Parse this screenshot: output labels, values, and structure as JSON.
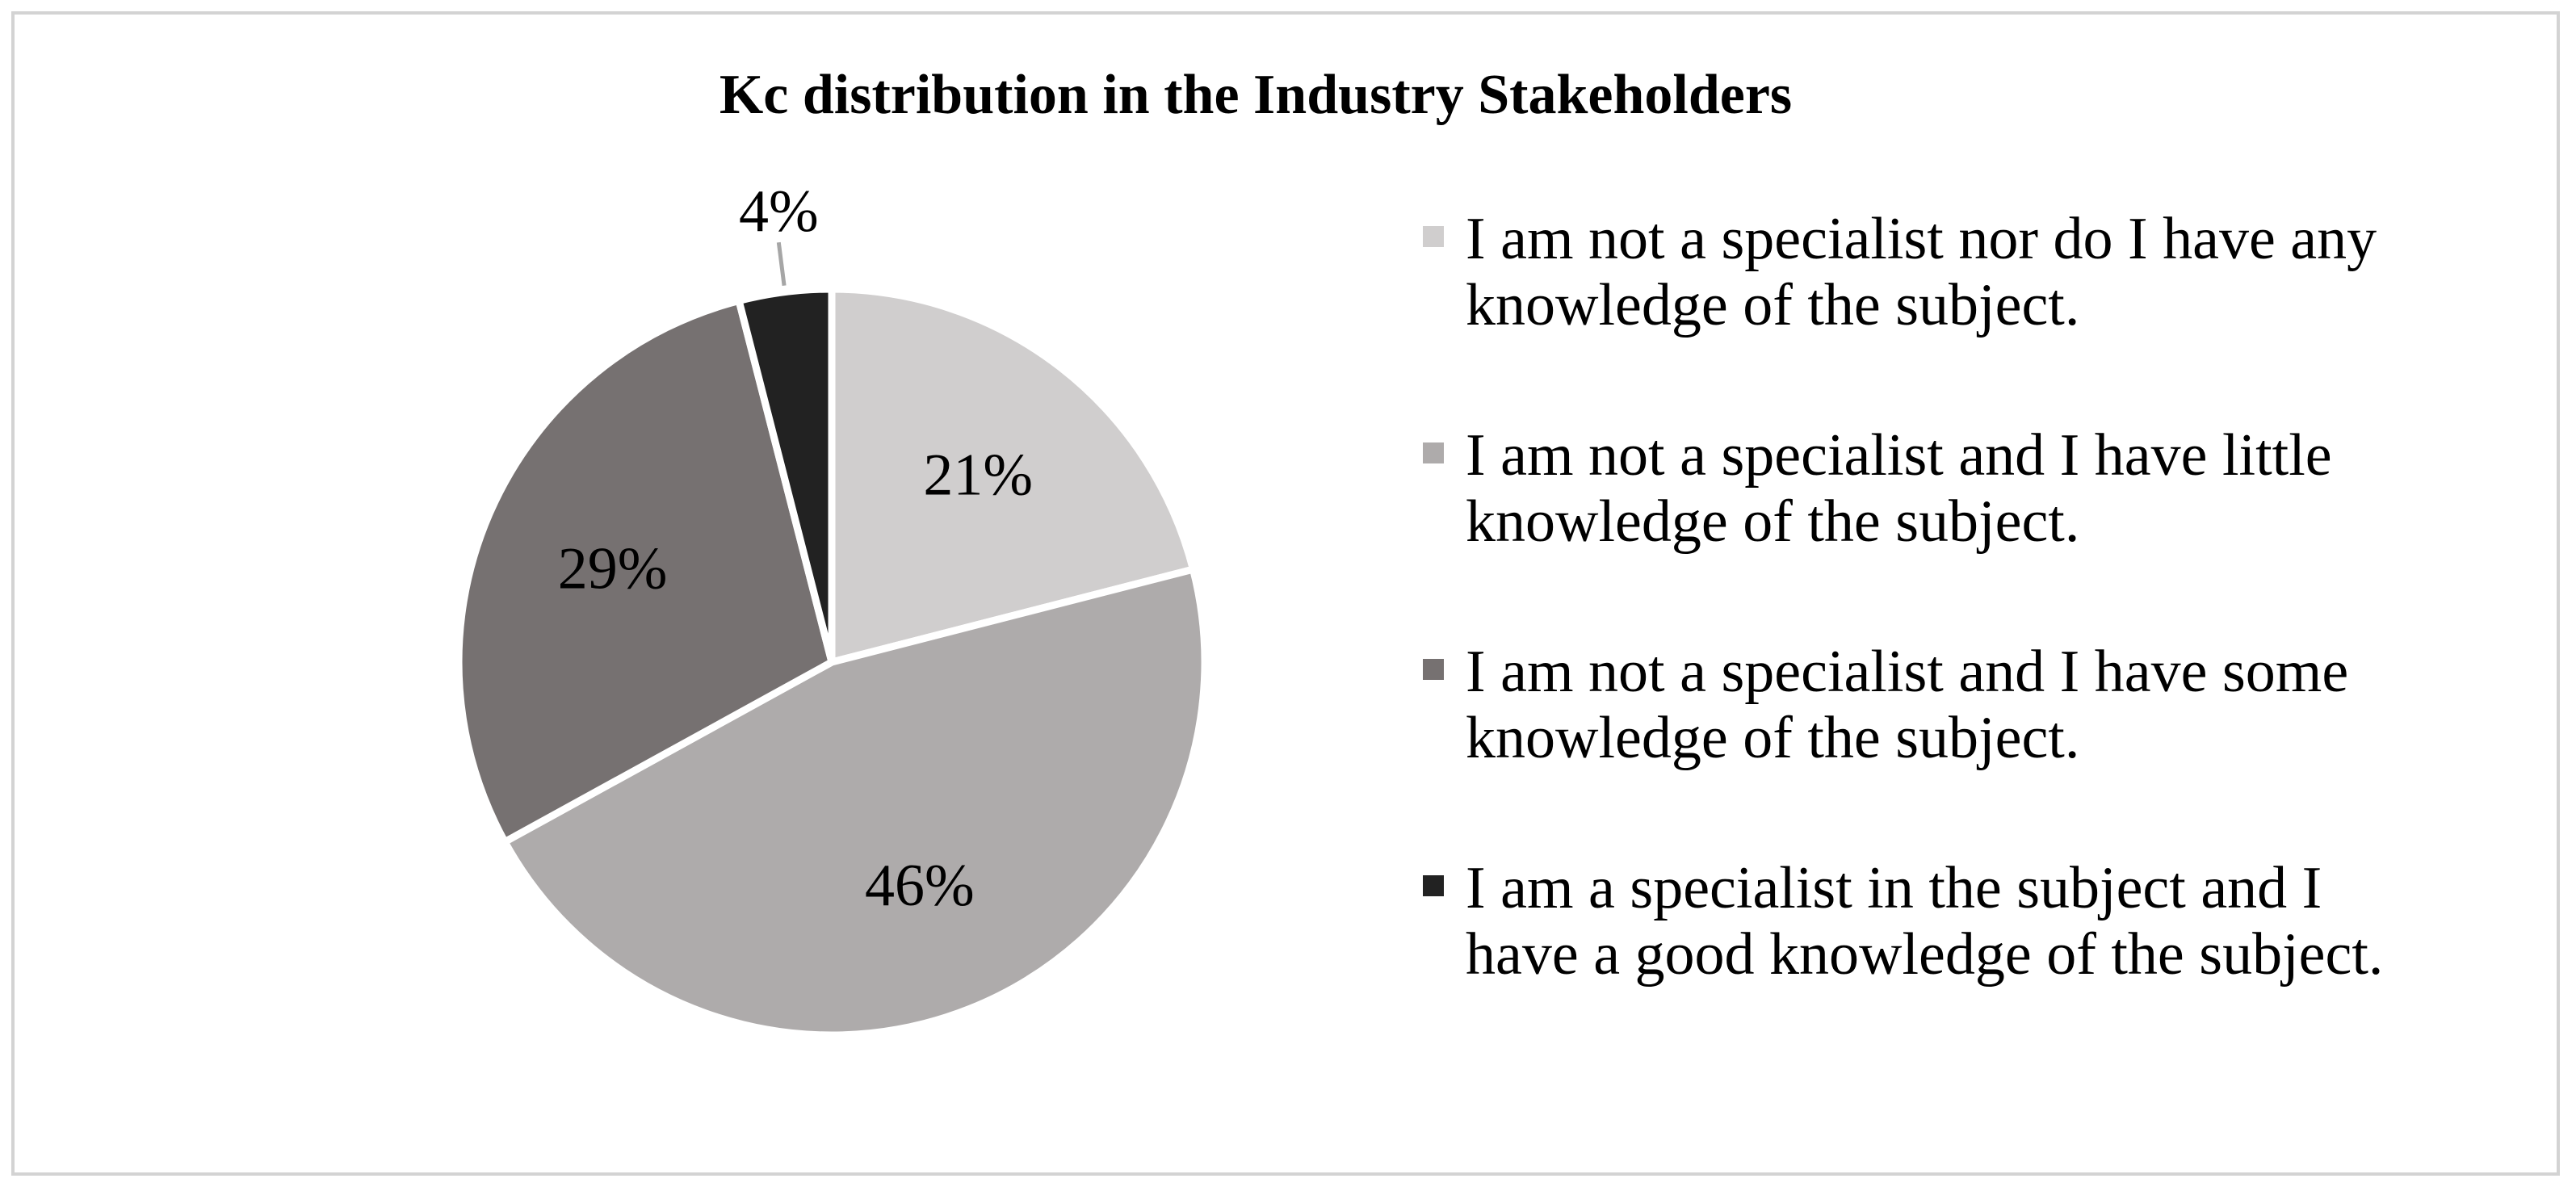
{
  "chart_data": {
    "type": "pie",
    "title": "Kc distribution in the Industry Stakeholders",
    "categories": [
      "I am not a specialist nor do I have any knowledge of the subject.",
      "I am not a specialist and I have little knowledge of the subject.",
      "I am not a specialist and I have some knowledge of the subject.",
      "I am a specialist in the subject and I have a good knowledge of the subject."
    ],
    "values": [
      21,
      46,
      29,
      4
    ],
    "data_labels": [
      "21%",
      "46%",
      "29%",
      "4%"
    ],
    "colors": [
      "#d0cece",
      "#aeabab",
      "#767171",
      "#222222"
    ],
    "legend_lines": [
      [
        "I am not a specialist nor do I have any",
        "knowledge of the subject."
      ],
      [
        "I am not a specialist and I have little",
        "knowledge of the subject."
      ],
      [
        "I am not a specialist and I have some",
        "knowledge of the subject."
      ],
      [
        "I am a specialist in the subject and I",
        "have a good knowledge of the subject."
      ]
    ],
    "legend_position": "right",
    "start_angle": "12 o'clock, clockwise"
  }
}
